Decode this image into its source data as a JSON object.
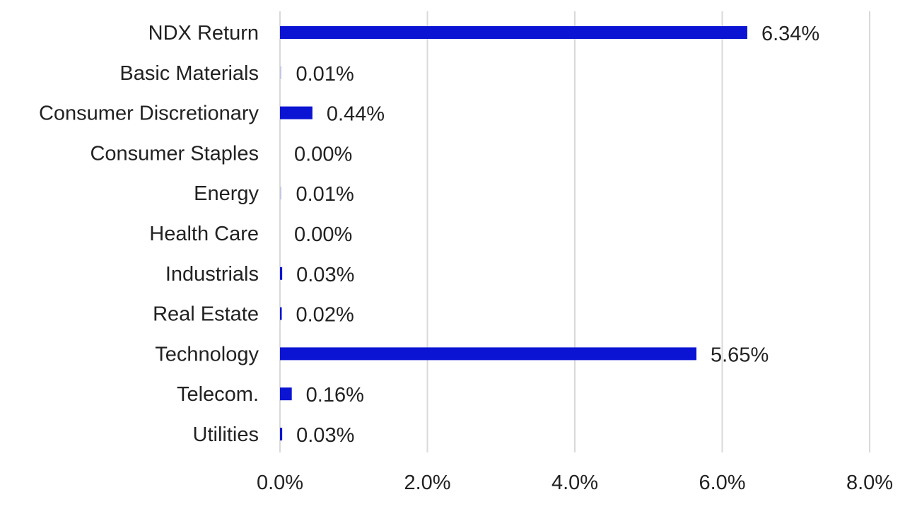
{
  "chart_data": {
    "type": "bar",
    "orientation": "horizontal",
    "categories": [
      "NDX  Return",
      "Basic Materials",
      "Consumer Discretionary",
      "Consumer Staples",
      "Energy",
      "Health Care",
      "Industrials",
      "Real Estate",
      "Technology",
      "Telecom.",
      "Utilities"
    ],
    "values": [
      6.34,
      0.01,
      0.44,
      0.0,
      0.01,
      0.0,
      0.03,
      0.02,
      5.65,
      0.16,
      0.03
    ],
    "value_labels": [
      "6.34%",
      "0.01%",
      "0.44%",
      "0.00%",
      "0.01%",
      "0.00%",
      "0.03%",
      "0.02%",
      "5.65%",
      "0.16%",
      "0.03%"
    ],
    "x_ticks": [
      0,
      2,
      4,
      6,
      8
    ],
    "x_tick_labels": [
      "0.0%",
      "2.0%",
      "4.0%",
      "6.0%",
      "8.0%"
    ],
    "xlim": [
      0,
      8
    ],
    "grid": "vertical",
    "legend": "none",
    "title": "",
    "xlabel": "",
    "ylabel": "",
    "colors": {
      "bar": "#0a14d2",
      "grid": "#d9d9d9",
      "text": "#222222"
    }
  }
}
